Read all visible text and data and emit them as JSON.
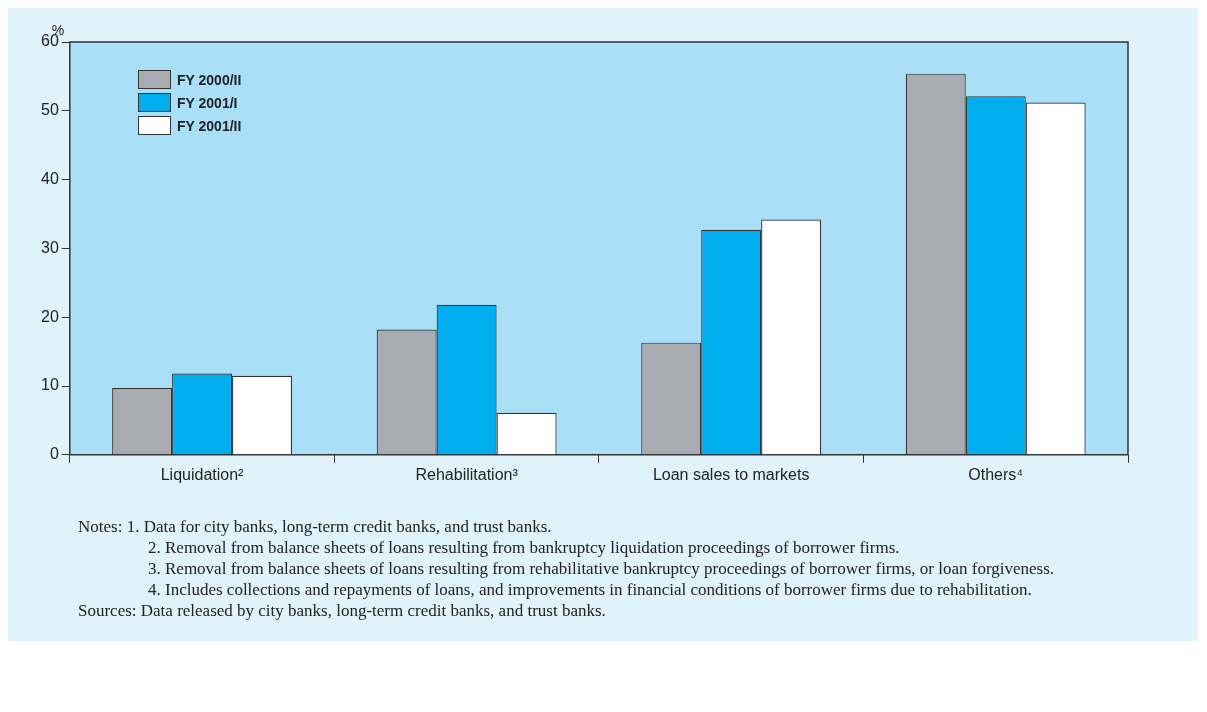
{
  "chart_data": {
    "type": "bar",
    "ylabel": "%",
    "categories": [
      "Liquidation²",
      "Rehabilitation³",
      "Loan sales to markets",
      "Others⁴"
    ],
    "series": [
      {
        "name": "FY 2000/II",
        "color": "#a9abb0",
        "values": [
          9.7,
          18.2,
          16.3,
          55.4
        ]
      },
      {
        "name": "FY 2001/I",
        "color": "#00aeef",
        "values": [
          11.8,
          21.8,
          32.7,
          52.1
        ]
      },
      {
        "name": "FY 2001/II",
        "color": "#ffffff",
        "values": [
          11.5,
          6.1,
          34.2,
          51.2
        ]
      }
    ],
    "ylim": [
      0,
      60
    ],
    "yticks": [
      0,
      10,
      20,
      30,
      40,
      50,
      60
    ],
    "grid": false,
    "legend": "top left",
    "annotations": [
      "Notes: 1. Data for city banks, long-term credit banks, and trust banks.",
      "2. Removal from balance sheets of loans resulting from bankruptcy liquidation proceedings of borrower firms.",
      "3. Removal from balance sheets of loans resulting from rehabilitative bankruptcy proceedings of borrower firms, or loan forgiveness.",
      "4. Includes collections and repayments of loans, and improvements in financial conditions of borrower firms due to rehabilitation.",
      "Sources: Data released by city banks, long-term credit banks, and trust banks."
    ]
  }
}
